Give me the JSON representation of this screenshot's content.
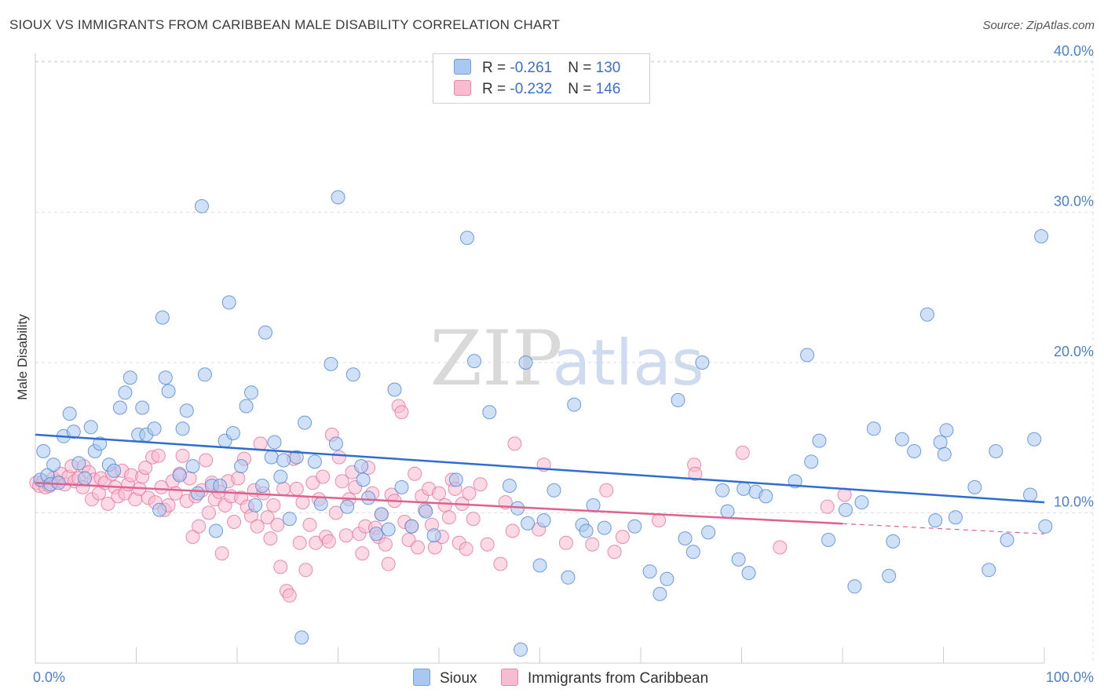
{
  "title": "SIOUX VS IMMIGRANTS FROM CARIBBEAN MALE DISABILITY CORRELATION CHART",
  "source": "Source: ZipAtlas.com",
  "watermark": {
    "zip": "ZIP",
    "atlas": "atlas"
  },
  "legend": {
    "rows": [
      {
        "r_label": "R = ",
        "r_value": "-0.261",
        "n_label": "N = ",
        "n_value": "130",
        "color": "#a9c8f0",
        "border": "#6a9fe0"
      },
      {
        "r_label": "R = ",
        "r_value": "-0.232",
        "n_label": "N = ",
        "n_value": "146",
        "color": "#f7bcd0",
        "border": "#e886aa"
      }
    ]
  },
  "colors": {
    "sioux": "#4a86d8",
    "sioux_fill": "#a9c8f0",
    "caribbean": "#e8709a",
    "caribbean_fill": "#f7bcd0",
    "grid": "#dddddd"
  },
  "chart_data": {
    "type": "scatter",
    "title": "SIOUX VS IMMIGRANTS FROM CARIBBEAN MALE DISABILITY CORRELATION CHART",
    "xlabel": "",
    "ylabel": "Male Disability",
    "xlim": [
      0,
      100
    ],
    "ylim": [
      0,
      42
    ],
    "x_tick_labels": [
      "0.0%",
      "100.0%"
    ],
    "y_ticks": [
      10,
      20,
      30,
      40
    ],
    "y_tick_labels": [
      "10.0%",
      "20.0%",
      "30.0%",
      "40.0%"
    ],
    "grid": true,
    "legend_position": "top-center",
    "series": [
      {
        "name": "Sioux",
        "trend": {
          "x": [
            0,
            100
          ],
          "y": [
            15.2,
            10.7
          ]
        },
        "points": [
          [
            0.5,
            12.2
          ],
          [
            0.8,
            14.1
          ],
          [
            1.2,
            12.5
          ],
          [
            1.5,
            11.9
          ],
          [
            1.8,
            13.2
          ],
          [
            2.3,
            12.0
          ],
          [
            2.8,
            15.1
          ],
          [
            3.4,
            16.6
          ],
          [
            3.8,
            15.4
          ],
          [
            4.3,
            13.3
          ],
          [
            4.9,
            12.3
          ],
          [
            5.5,
            15.7
          ],
          [
            5.9,
            14.1
          ],
          [
            6.4,
            14.6
          ],
          [
            7.3,
            13.2
          ],
          [
            7.8,
            12.8
          ],
          [
            8.4,
            17.0
          ],
          [
            8.9,
            18.0
          ],
          [
            9.4,
            19.0
          ],
          [
            10.2,
            15.2
          ],
          [
            10.6,
            17.0
          ],
          [
            11.0,
            15.2
          ],
          [
            11.8,
            15.6
          ],
          [
            12.3,
            10.2
          ],
          [
            12.6,
            23.0
          ],
          [
            12.9,
            19.0
          ],
          [
            13.2,
            18.1
          ],
          [
            14.3,
            12.5
          ],
          [
            14.6,
            15.6
          ],
          [
            15.0,
            16.8
          ],
          [
            15.6,
            13.1
          ],
          [
            16.1,
            11.3
          ],
          [
            16.5,
            30.4
          ],
          [
            16.8,
            19.2
          ],
          [
            17.5,
            11.8
          ],
          [
            17.9,
            8.8
          ],
          [
            18.3,
            11.8
          ],
          [
            18.8,
            14.8
          ],
          [
            19.2,
            24.0
          ],
          [
            19.6,
            15.3
          ],
          [
            20.4,
            13.1
          ],
          [
            20.9,
            17.1
          ],
          [
            21.4,
            18.0
          ],
          [
            21.8,
            10.5
          ],
          [
            22.5,
            11.8
          ],
          [
            22.8,
            22.0
          ],
          [
            23.4,
            13.7
          ],
          [
            23.7,
            14.7
          ],
          [
            24.3,
            12.4
          ],
          [
            24.6,
            13.5
          ],
          [
            25.2,
            9.6
          ],
          [
            25.9,
            13.7
          ],
          [
            26.7,
            16.0
          ],
          [
            26.4,
            1.7
          ],
          [
            27.7,
            13.4
          ],
          [
            28.3,
            10.6
          ],
          [
            29.3,
            19.9
          ],
          [
            29.8,
            14.6
          ],
          [
            30.0,
            31.0
          ],
          [
            30.9,
            10.4
          ],
          [
            31.5,
            19.2
          ],
          [
            32.3,
            13.1
          ],
          [
            32.5,
            12.2
          ],
          [
            33.0,
            11.0
          ],
          [
            33.8,
            8.6
          ],
          [
            34.3,
            9.9
          ],
          [
            35.0,
            8.9
          ],
          [
            35.6,
            18.2
          ],
          [
            36.3,
            11.7
          ],
          [
            37.3,
            9.1
          ],
          [
            38.7,
            10.1
          ],
          [
            39.5,
            8.5
          ],
          [
            41.7,
            12.2
          ],
          [
            42.8,
            28.3
          ],
          [
            43.5,
            20.1
          ],
          [
            45.0,
            16.7
          ],
          [
            47.0,
            11.8
          ],
          [
            47.8,
            10.3
          ],
          [
            48.1,
            0.9
          ],
          [
            48.6,
            20.0
          ],
          [
            48.8,
            9.3
          ],
          [
            50.0,
            6.5
          ],
          [
            50.4,
            9.5
          ],
          [
            51.4,
            11.5
          ],
          [
            52.8,
            5.7
          ],
          [
            53.4,
            17.2
          ],
          [
            54.2,
            9.2
          ],
          [
            54.6,
            8.8
          ],
          [
            55.3,
            10.5
          ],
          [
            56.4,
            9.0
          ],
          [
            59.4,
            9.1
          ],
          [
            60.9,
            6.1
          ],
          [
            61.9,
            4.6
          ],
          [
            62.6,
            5.6
          ],
          [
            63.7,
            17.5
          ],
          [
            64.4,
            8.3
          ],
          [
            65.2,
            7.4
          ],
          [
            66.1,
            20.0
          ],
          [
            66.7,
            8.7
          ],
          [
            68.1,
            11.5
          ],
          [
            68.6,
            10.1
          ],
          [
            69.7,
            6.9
          ],
          [
            70.2,
            11.6
          ],
          [
            70.7,
            6.0
          ],
          [
            71.4,
            11.4
          ],
          [
            72.4,
            11.1
          ],
          [
            75.3,
            12.1
          ],
          [
            76.5,
            20.5
          ],
          [
            76.9,
            13.4
          ],
          [
            77.7,
            14.8
          ],
          [
            78.6,
            8.2
          ],
          [
            80.3,
            10.2
          ],
          [
            81.2,
            5.1
          ],
          [
            81.9,
            10.7
          ],
          [
            83.1,
            15.6
          ],
          [
            84.6,
            5.8
          ],
          [
            85.0,
            8.1
          ],
          [
            85.9,
            14.9
          ],
          [
            87.1,
            14.1
          ],
          [
            88.4,
            23.2
          ],
          [
            89.2,
            9.5
          ],
          [
            89.7,
            14.7
          ],
          [
            90.1,
            13.9
          ],
          [
            90.3,
            15.5
          ],
          [
            91.2,
            9.7
          ],
          [
            93.1,
            11.7
          ],
          [
            94.5,
            6.2
          ],
          [
            95.2,
            14.1
          ],
          [
            96.3,
            8.2
          ],
          [
            98.6,
            11.2
          ],
          [
            99.0,
            14.9
          ],
          [
            99.7,
            28.4
          ],
          [
            100.1,
            9.1
          ]
        ]
      },
      {
        "name": "Immigrants from Caribbean",
        "trend": {
          "x": [
            0,
            100
          ],
          "y": [
            12.0,
            8.6
          ]
        },
        "trend_solid_until": 80,
        "points": [
          [
            0.1,
            12.0
          ],
          [
            0.4,
            11.8
          ],
          [
            0.8,
            12.1
          ],
          [
            1.0,
            11.7
          ],
          [
            1.4,
            11.8
          ],
          [
            1.8,
            12.3
          ],
          [
            2.1,
            12.1
          ],
          [
            2.5,
            12.6
          ],
          [
            2.9,
            11.9
          ],
          [
            3.3,
            12.4
          ],
          [
            3.6,
            13.1
          ],
          [
            3.9,
            12.1
          ],
          [
            4.3,
            12.3
          ],
          [
            4.7,
            11.7
          ],
          [
            4.8,
            13.1
          ],
          [
            5.3,
            12.7
          ],
          [
            5.6,
            10.9
          ],
          [
            5.8,
            12.2
          ],
          [
            6.3,
            11.3
          ],
          [
            6.5,
            12.3
          ],
          [
            6.9,
            12.0
          ],
          [
            7.2,
            10.6
          ],
          [
            7.6,
            12.6
          ],
          [
            7.9,
            11.7
          ],
          [
            8.2,
            11.1
          ],
          [
            8.6,
            12.8
          ],
          [
            8.9,
            11.3
          ],
          [
            9.2,
            11.9
          ],
          [
            9.5,
            12.5
          ],
          [
            9.9,
            10.9
          ],
          [
            10.3,
            11.6
          ],
          [
            10.6,
            12.4
          ],
          [
            10.9,
            13.0
          ],
          [
            11.2,
            11.0
          ],
          [
            11.6,
            13.7
          ],
          [
            11.9,
            10.7
          ],
          [
            12.2,
            13.8
          ],
          [
            12.5,
            11.7
          ],
          [
            12.8,
            10.2
          ],
          [
            13.2,
            10.5
          ],
          [
            13.6,
            12.1
          ],
          [
            13.9,
            11.3
          ],
          [
            14.3,
            12.6
          ],
          [
            14.6,
            13.8
          ],
          [
            15.0,
            10.8
          ],
          [
            15.3,
            12.3
          ],
          [
            15.6,
            8.4
          ],
          [
            15.9,
            11.1
          ],
          [
            16.2,
            9.1
          ],
          [
            16.5,
            11.5
          ],
          [
            16.9,
            13.5
          ],
          [
            17.2,
            10.0
          ],
          [
            17.5,
            12.0
          ],
          [
            17.8,
            10.9
          ],
          [
            18.2,
            11.4
          ],
          [
            18.5,
            7.3
          ],
          [
            18.8,
            10.5
          ],
          [
            19.1,
            12.1
          ],
          [
            19.4,
            11.1
          ],
          [
            19.7,
            9.4
          ],
          [
            20.1,
            12.3
          ],
          [
            20.4,
            11.0
          ],
          [
            20.7,
            13.6
          ],
          [
            21.0,
            10.4
          ],
          [
            21.4,
            9.8
          ],
          [
            21.7,
            11.5
          ],
          [
            22.0,
            9.1
          ],
          [
            22.3,
            14.6
          ],
          [
            22.6,
            11.3
          ],
          [
            23.0,
            9.7
          ],
          [
            23.3,
            8.3
          ],
          [
            23.6,
            10.5
          ],
          [
            24.0,
            9.2
          ],
          [
            24.3,
            6.4
          ],
          [
            24.6,
            11.6
          ],
          [
            24.9,
            4.8
          ],
          [
            25.2,
            4.5
          ],
          [
            25.6,
            13.6
          ],
          [
            25.9,
            11.6
          ],
          [
            26.2,
            8.0
          ],
          [
            26.5,
            10.7
          ],
          [
            26.8,
            6.2
          ],
          [
            27.2,
            9.2
          ],
          [
            27.5,
            12.0
          ],
          [
            27.8,
            8.0
          ],
          [
            28.1,
            10.9
          ],
          [
            28.5,
            12.4
          ],
          [
            28.8,
            8.4
          ],
          [
            29.1,
            8.1
          ],
          [
            29.4,
            15.2
          ],
          [
            29.8,
            10.0
          ],
          [
            30.1,
            13.7
          ],
          [
            30.4,
            12.1
          ],
          [
            30.8,
            8.5
          ],
          [
            31.1,
            10.9
          ],
          [
            31.4,
            12.7
          ],
          [
            31.7,
            11.7
          ],
          [
            32.1,
            8.6
          ],
          [
            32.4,
            7.3
          ],
          [
            32.7,
            9.1
          ],
          [
            33.0,
            13.0
          ],
          [
            33.4,
            11.3
          ],
          [
            33.7,
            9.0
          ],
          [
            34.0,
            8.4
          ],
          [
            34.3,
            9.9
          ],
          [
            34.7,
            7.9
          ],
          [
            35.0,
            6.6
          ],
          [
            35.3,
            11.2
          ],
          [
            35.6,
            10.8
          ],
          [
            36.0,
            17.1
          ],
          [
            36.3,
            16.7
          ],
          [
            36.6,
            9.4
          ],
          [
            37.0,
            8.2
          ],
          [
            37.3,
            9.1
          ],
          [
            37.6,
            12.6
          ],
          [
            37.9,
            7.7
          ],
          [
            38.3,
            11.1
          ],
          [
            38.6,
            10.2
          ],
          [
            39.0,
            11.6
          ],
          [
            39.3,
            9.2
          ],
          [
            39.6,
            7.7
          ],
          [
            40.0,
            11.3
          ],
          [
            40.3,
            8.4
          ],
          [
            40.6,
            10.5
          ],
          [
            41.0,
            9.7
          ],
          [
            41.3,
            12.2
          ],
          [
            41.6,
            11.6
          ],
          [
            42.0,
            8.0
          ],
          [
            42.3,
            10.6
          ],
          [
            42.7,
            7.6
          ],
          [
            43.0,
            11.3
          ],
          [
            43.4,
            9.6
          ],
          [
            44.1,
            11.9
          ],
          [
            44.8,
            7.9
          ],
          [
            46.1,
            6.6
          ],
          [
            46.6,
            10.7
          ],
          [
            47.3,
            8.8
          ],
          [
            47.5,
            14.6
          ],
          [
            49.9,
            8.9
          ],
          [
            50.4,
            13.2
          ],
          [
            52.6,
            8.0
          ],
          [
            55.2,
            7.9
          ],
          [
            56.6,
            11.5
          ],
          [
            57.4,
            7.4
          ],
          [
            58.2,
            8.4
          ],
          [
            61.8,
            9.5
          ],
          [
            65.3,
            13.2
          ],
          [
            65.4,
            12.6
          ],
          [
            70.1,
            14.0
          ],
          [
            73.8,
            7.7
          ],
          [
            78.5,
            10.4
          ],
          [
            80.2,
            11.2
          ]
        ]
      }
    ]
  },
  "bottom_legend": {
    "items": [
      {
        "label": "Sioux"
      },
      {
        "label": "Immigrants from Caribbean"
      }
    ]
  }
}
